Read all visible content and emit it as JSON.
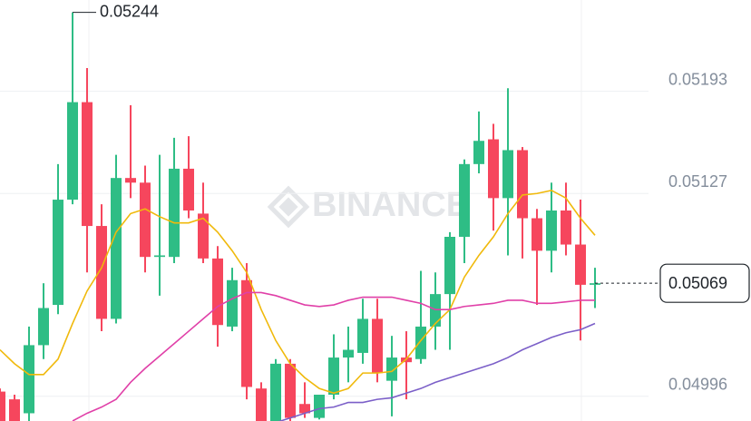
{
  "chart_data": {
    "type": "candlestick",
    "watermark": "BINANCE",
    "ylim": [
      0.0498,
      0.05252
    ],
    "yticks": [
      0.05193,
      0.05127,
      0.04996
    ],
    "grid": true,
    "up_color": "#2ebd85",
    "down_color": "#f6465d",
    "open": [
      0.04999,
      0.04994,
      0.04985,
      0.05029,
      0.05055,
      0.05123,
      0.05186,
      0.05106,
      0.05046,
      0.05137,
      0.05134,
      0.05086,
      0.05086,
      0.05143,
      0.05114,
      0.05085,
      0.05041,
      0.05071,
      0.05001,
      0.04979,
      0.05017,
      0.04991,
      0.04982,
      0.04997,
      0.05021,
      0.05024,
      0.05046,
      0.05006,
      0.05021,
      0.0502,
      0.05041,
      0.05062,
      0.05099,
      0.05146,
      0.05162,
      0.05124,
      0.05155,
      0.05111,
      0.0509,
      0.05116,
      0.05094,
      0.05068
    ],
    "high": [
      0.05001,
      0.04997,
      0.05041,
      0.05069,
      0.05146,
      0.05244,
      0.05208,
      0.0512,
      0.05152,
      0.05184,
      0.05145,
      0.05152,
      0.05163,
      0.05164,
      0.05134,
      0.05093,
      0.05079,
      0.05082,
      0.05005,
      0.0502,
      0.0502,
      0.05005,
      0.04997,
      0.05036,
      0.05041,
      0.05059,
      0.05059,
      0.05035,
      0.05038,
      0.05077,
      0.05076,
      0.05102,
      0.05149,
      0.0518,
      0.05172,
      0.05195,
      0.05157,
      0.05117,
      0.05134,
      0.05134,
      0.05123,
      0.05079
    ],
    "low": [
      0.04979,
      0.04979,
      0.04979,
      0.0502,
      0.05049,
      0.0512,
      0.05076,
      0.05038,
      0.05043,
      0.05124,
      0.05076,
      0.05061,
      0.05082,
      0.05111,
      0.05082,
      0.05028,
      0.05038,
      0.04994,
      0.04979,
      0.04979,
      0.04979,
      0.04982,
      0.04981,
      0.04994,
      0.05005,
      0.05017,
      0.05005,
      0.04983,
      0.04994,
      0.05017,
      0.05026,
      0.05026,
      0.05082,
      0.0514,
      0.05103,
      0.05087,
      0.05085,
      0.05055,
      0.05076,
      0.05087,
      0.05032,
      0.05053
    ],
    "close": [
      0.04979,
      0.04979,
      0.05029,
      0.05053,
      0.05123,
      0.05186,
      0.05106,
      0.05046,
      0.05137,
      0.05134,
      0.05086,
      0.05087,
      0.05143,
      0.05116,
      0.05085,
      0.05042,
      0.05071,
      0.05002,
      0.04979,
      0.05017,
      0.04982,
      0.04985,
      0.04997,
      0.05021,
      0.05026,
      0.05046,
      0.05011,
      0.05021,
      0.05018,
      0.05041,
      0.05062,
      0.05099,
      0.05146,
      0.05161,
      0.05124,
      0.05155,
      0.05111,
      0.0509,
      0.05116,
      0.05094,
      0.05068,
      0.05069
    ],
    "lines": [
      {
        "color": "#f0b90b",
        "values": [
          0.05026,
          0.05017,
          0.0501,
          0.0501,
          0.0502,
          0.05043,
          0.05064,
          0.05079,
          0.05102,
          0.05114,
          0.05117,
          0.05112,
          0.05108,
          0.05108,
          0.05111,
          0.05102,
          0.0509,
          0.05076,
          0.05052,
          0.05032,
          0.05017,
          0.05008,
          0.05001,
          0.04998,
          0.05001,
          0.05011,
          0.05011,
          0.05012,
          0.0502,
          0.05032,
          0.05043,
          0.05052,
          0.05073,
          0.05087,
          0.05099,
          0.05114,
          0.05126,
          0.05127,
          0.05129,
          0.05124,
          0.05111,
          0.051
        ]
      },
      {
        "color": "#e040a8",
        "values": [
          null,
          null,
          null,
          null,
          null,
          0.0498,
          0.04985,
          0.04989,
          0.04994,
          0.05005,
          0.05014,
          0.05022,
          0.0503,
          0.05038,
          0.05046,
          0.05054,
          0.05059,
          0.05063,
          0.05063,
          0.05061,
          0.05058,
          0.05055,
          0.05054,
          0.05055,
          0.05058,
          0.0506,
          0.0506,
          0.0506,
          0.05058,
          0.05056,
          0.05052,
          0.05052,
          0.05054,
          0.05055,
          0.05056,
          0.05058,
          0.05058,
          0.05056,
          0.05056,
          0.05057,
          0.05058,
          0.05058
        ]
      },
      {
        "color": "#7b5fc8",
        "values": [
          null,
          null,
          null,
          null,
          null,
          null,
          null,
          null,
          null,
          null,
          null,
          null,
          null,
          null,
          null,
          null,
          null,
          null,
          null,
          0.04979,
          0.04982,
          0.04985,
          0.04988,
          0.04989,
          0.04992,
          0.04992,
          0.04994,
          0.04995,
          0.04998,
          0.05001,
          0.05005,
          0.05008,
          0.05011,
          0.05014,
          0.05017,
          0.05021,
          0.05026,
          0.0503,
          0.05034,
          0.05037,
          0.05039,
          0.05043
        ]
      }
    ],
    "high_label": {
      "value": 0.05244,
      "label": "0.05244"
    },
    "last_price": {
      "value": 0.05069,
      "label": "0.05069"
    }
  }
}
